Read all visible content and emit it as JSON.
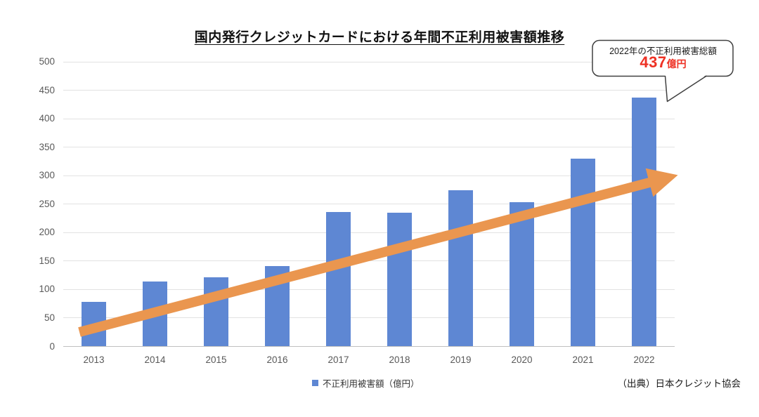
{
  "title": "国内発行クレジットカードにおける年間不正利用被害額推移",
  "source_note": "（出典）日本クレジット協会",
  "legend": {
    "label": "不正利用被害額（億円）"
  },
  "callout": {
    "line1": "2022年の不正利用被害総額",
    "value": "437",
    "unit": "億円"
  },
  "colors": {
    "bar": "#5E87D3",
    "arrow": "#EA964F",
    "grid": "#E2E2E2",
    "axis": "#BFBFBF",
    "tick_label": "#595959",
    "callout_border": "#404040",
    "callout_value_red": "#EE3124"
  },
  "chart_data": {
    "type": "bar",
    "title": "国内発行クレジットカードにおける年間不正利用被害額推移",
    "categories": [
      "2013",
      "2014",
      "2015",
      "2016",
      "2017",
      "2018",
      "2019",
      "2020",
      "2021",
      "2022"
    ],
    "values": [
      78,
      114,
      121,
      141,
      236,
      235,
      274,
      253,
      330,
      437
    ],
    "series_name": "不正利用被害額（億円）",
    "xlabel": "",
    "ylabel": "",
    "ylim": [
      0,
      500
    ],
    "yticks": [
      0,
      50,
      100,
      150,
      200,
      250,
      300,
      350,
      400,
      450,
      500
    ],
    "grid": true,
    "legend_position": "bottom",
    "annotations": [
      "orange upward trend arrow across bars",
      "callout bubble on 2022 bar: 437億円"
    ]
  }
}
